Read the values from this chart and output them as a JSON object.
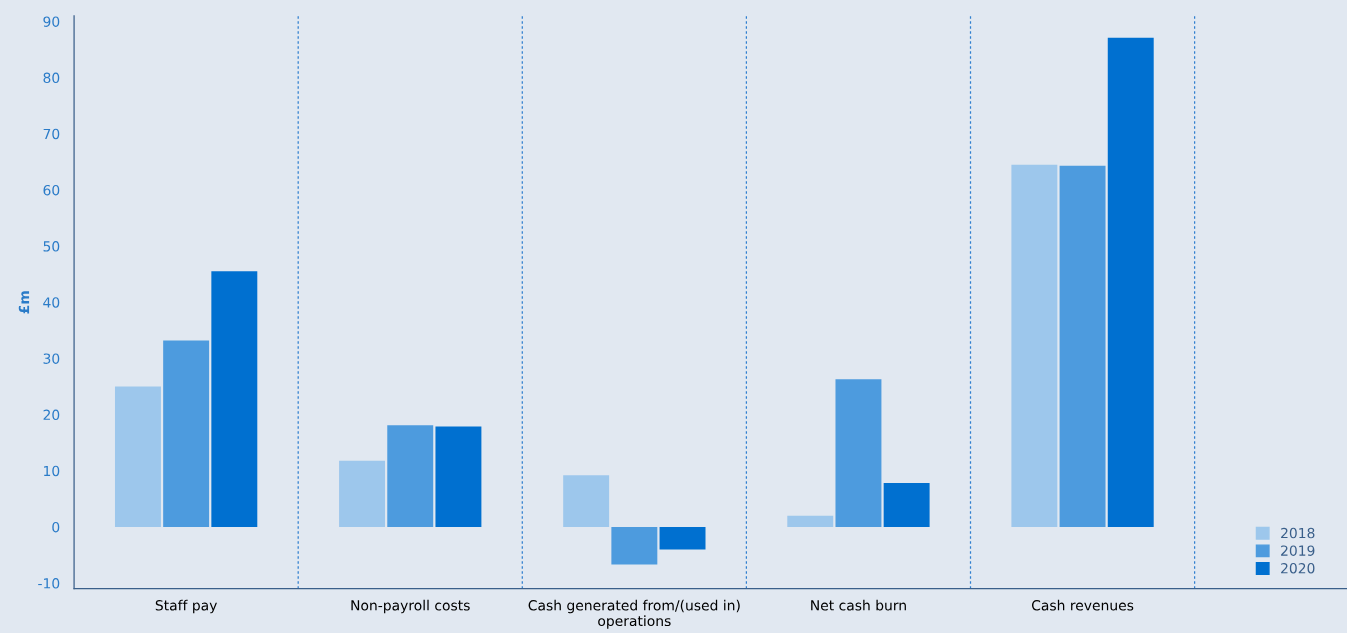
{
  "chart_data": {
    "type": "bar",
    "ylabel": "£m",
    "categories": [
      "Staff pay",
      "Non-payroll costs",
      "Cash generated from/(used in) operations",
      "Net cash burn",
      "Cash revenues"
    ],
    "series": [
      {
        "name": "2018",
        "color": "#9dc7ec",
        "values": [
          25.0,
          11.8,
          9.2,
          2.0,
          64.5
        ]
      },
      {
        "name": "2019",
        "color": "#4d9bde",
        "values": [
          33.2,
          18.1,
          -6.7,
          26.3,
          64.3
        ]
      },
      {
        "name": "2020",
        "color": "#0070d0",
        "values": [
          45.5,
          17.9,
          -4.0,
          7.8,
          87.1
        ]
      }
    ],
    "ylim": [
      -11,
      91
    ],
    "yticks": [
      -10,
      0,
      10,
      20,
      30,
      40,
      50,
      60,
      70,
      80,
      90
    ],
    "grid": "x",
    "legend": "bottom right"
  }
}
